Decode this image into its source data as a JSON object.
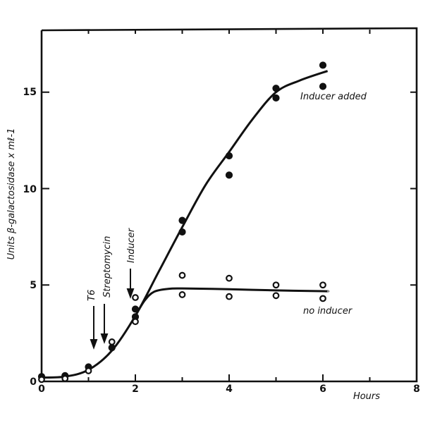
{
  "chart_data": {
    "type": "scatter",
    "title": "",
    "xlabel": "Hours",
    "ylabel": "Units β-galactosidase x ml-1",
    "xlim": [
      0,
      8
    ],
    "ylim": [
      0,
      17.5
    ],
    "xticks": [
      0,
      2,
      4,
      6,
      8
    ],
    "xticks_minor": [
      1,
      3,
      5,
      7
    ],
    "yticks": [
      0,
      5,
      10,
      15
    ],
    "grid": false,
    "legend": null,
    "series": [
      {
        "name": "Inducer added",
        "marker": "filled-circle",
        "points": [
          [
            0,
            0.25
          ],
          [
            0.5,
            0.3
          ],
          [
            1,
            0.75
          ],
          [
            1.5,
            1.75
          ],
          [
            2,
            3.75
          ],
          [
            2,
            3.35
          ],
          [
            3,
            8.35
          ],
          [
            3,
            7.75
          ],
          [
            4,
            11.7
          ],
          [
            4,
            10.7
          ],
          [
            5,
            15.2
          ],
          [
            5,
            14.7
          ],
          [
            6,
            16.4
          ],
          [
            6,
            15.3
          ]
        ],
        "curve": [
          [
            0,
            0.2
          ],
          [
            0.5,
            0.25
          ],
          [
            1,
            0.6
          ],
          [
            1.5,
            1.6
          ],
          [
            2,
            3.4
          ],
          [
            2.5,
            5.7
          ],
          [
            3,
            8.0
          ],
          [
            3.5,
            10.2
          ],
          [
            4,
            11.9
          ],
          [
            4.5,
            13.6
          ],
          [
            5,
            15.0
          ],
          [
            5.5,
            15.6
          ],
          [
            6.1,
            16.1
          ]
        ]
      },
      {
        "name": "no inducer",
        "marker": "open-circle",
        "points": [
          [
            0,
            0.1
          ],
          [
            0.5,
            0.15
          ],
          [
            1,
            0.55
          ],
          [
            1.5,
            2.05
          ],
          [
            2,
            4.35
          ],
          [
            2,
            3.1
          ],
          [
            3,
            5.5
          ],
          [
            3,
            4.5
          ],
          [
            4,
            5.35
          ],
          [
            4,
            4.4
          ],
          [
            5,
            5.0
          ],
          [
            5,
            4.45
          ],
          [
            6,
            5.0
          ],
          [
            6,
            4.3
          ]
        ],
        "curve": [
          [
            2,
            3.4
          ],
          [
            2.2,
            4.2
          ],
          [
            2.4,
            4.65
          ],
          [
            2.7,
            4.8
          ],
          [
            3,
            4.82
          ],
          [
            4,
            4.78
          ],
          [
            5,
            4.72
          ],
          [
            6,
            4.68
          ],
          [
            6.1,
            4.67
          ]
        ]
      }
    ],
    "annotations": [
      {
        "text": "T6",
        "x": 1.1,
        "arrow_from_y": 3.9,
        "arrow_to_y": 1.8,
        "label_y": 4.3
      },
      {
        "text": "Streptomycin",
        "x": 1.35,
        "arrow_from_y": 4.0,
        "arrow_to_y": 2.1,
        "label_y": 4.6
      },
      {
        "text": "Inducer",
        "x": 1.9,
        "arrow_from_y": 5.8,
        "arrow_to_y": 4.4,
        "label_y": 6.4
      },
      {
        "text": "Inducer added",
        "x": 6.25,
        "y": 14.7
      },
      {
        "text": "no inducer",
        "x": 5.5,
        "y": 3.6
      }
    ]
  },
  "labels": {
    "xlabel": "Hours",
    "ylabel": "Units β-galactosidase x mℓ-1",
    "series_a": "Inducer added",
    "series_b": "no inducer",
    "arrow_t6": "T6",
    "arrow_strep": "Streptomycin",
    "arrow_inducer": "Inducer",
    "xtick_0": "0",
    "xtick_2": "2",
    "xtick_4": "4",
    "xtick_6": "6",
    "xtick_8": "8",
    "ytick_0": "0",
    "ytick_5": "5",
    "ytick_10": "10",
    "ytick_15": "15"
  }
}
